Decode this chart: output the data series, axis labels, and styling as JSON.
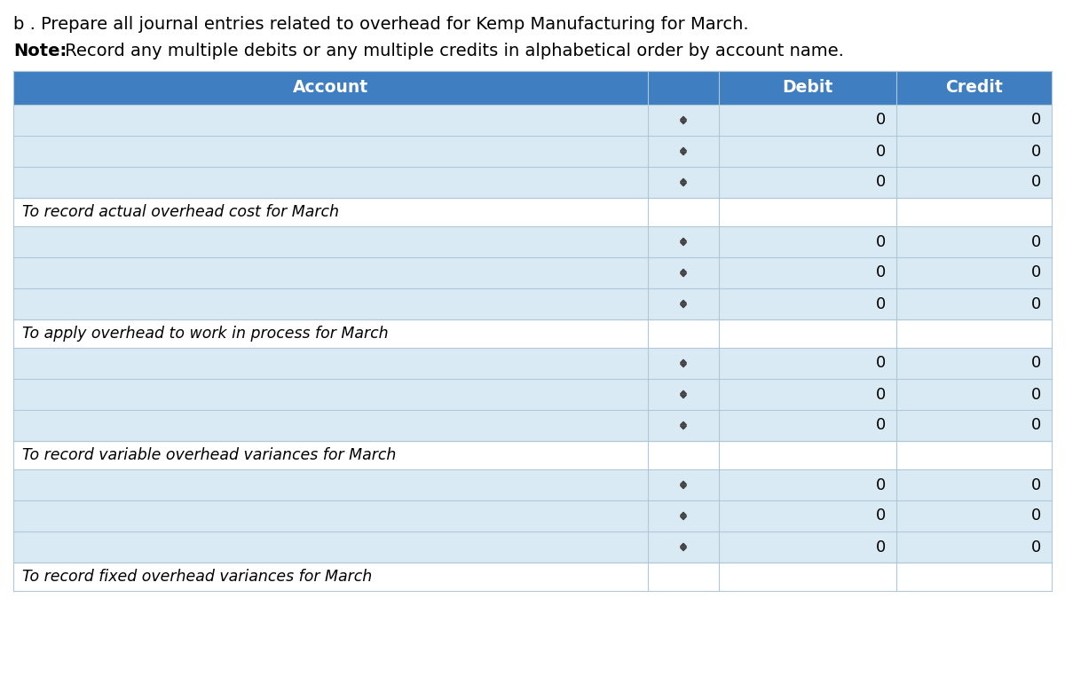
{
  "title_line1": "b . Prepare all journal entries related to overhead for Kemp Manufacturing for March.",
  "title_line2_bold": "Note:",
  "title_line2_rest": " Record any multiple debits or any multiple credits in alphabetical order by account name.",
  "header_bg": "#3E7EC1",
  "header_text_color": "#FFFFFF",
  "col_headers": [
    "Account",
    "Debit",
    "Credit"
  ],
  "row_light_bg": "#D9EAF4",
  "row_white_bg": "#FFFFFF",
  "border_color": "#B0C8D8",
  "sections": [
    {
      "data_rows": 3,
      "note": "To record actual overhead cost for March"
    },
    {
      "data_rows": 3,
      "note": "To apply overhead to work in process for March"
    },
    {
      "data_rows": 3,
      "note": "To record variable overhead variances for March"
    },
    {
      "data_rows": 3,
      "note": "To record fixed overhead variances for March"
    }
  ],
  "figsize": [
    12.0,
    7.63
  ],
  "dpi": 100
}
